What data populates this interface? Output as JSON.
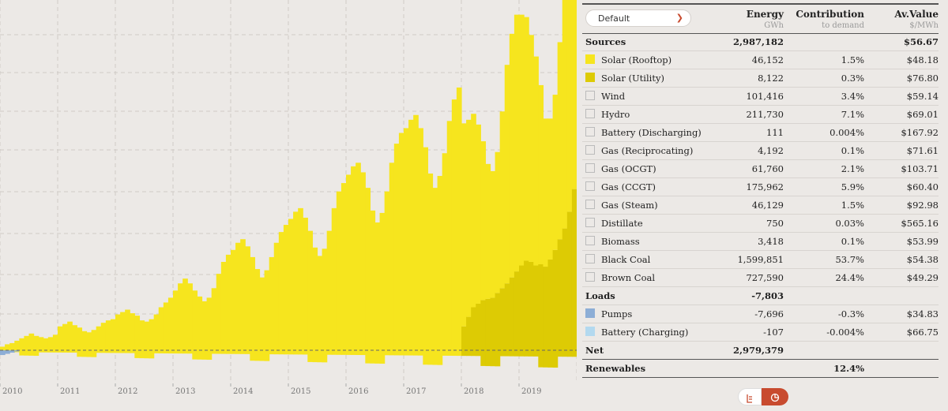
{
  "chart_data": {
    "type": "area",
    "x_labels": [
      "2010",
      "2011",
      "2012",
      "2013",
      "2014",
      "2015",
      "2016",
      "2017",
      "2018",
      "2019"
    ],
    "series": [
      {
        "name": "Solar (Rooftop)",
        "color": "#f6e51e",
        "values": [
          0.3,
          0.5,
          0.6,
          0.8,
          1.0,
          1.2,
          1.4,
          1.2,
          1.1,
          1.0,
          1.1,
          1.3,
          2.0,
          2.2,
          2.4,
          2.1,
          1.9,
          1.6,
          1.5,
          1.7,
          2.0,
          2.3,
          2.5,
          2.6,
          3.0,
          3.2,
          3.4,
          3.1,
          2.9,
          2.5,
          2.4,
          2.6,
          3.0,
          3.6,
          4.0,
          4.4,
          5.0,
          5.6,
          6.0,
          5.6,
          5.0,
          4.5,
          4.1,
          4.4,
          5.2,
          6.4,
          7.4,
          8.0,
          8.4,
          9.0,
          9.3,
          8.7,
          7.8,
          6.8,
          6.1,
          6.7,
          7.8,
          9.0,
          9.9,
          10.5,
          11.0,
          11.6,
          11.9,
          11.1,
          10.0,
          8.6,
          7.9,
          8.5,
          10.0,
          11.9,
          13.3,
          14.0,
          14.7,
          15.4,
          15.7,
          14.9,
          13.6,
          11.7,
          10.7,
          11.5,
          13.3,
          15.7,
          17.3,
          18.2,
          18.6,
          19.3,
          19.7,
          18.6,
          17.0,
          14.8,
          13.6,
          14.6,
          16.5,
          19.2,
          21.0,
          22.0,
          17.0,
          16.5,
          16.2,
          15.0,
          13.3,
          11.3,
          10.6,
          11.8,
          14.8,
          18.3,
          20.4,
          21.5,
          21.0,
          20.4,
          19.0,
          17.5,
          15.0,
          12.4,
          11.8,
          13.0,
          16.5,
          21.0,
          23.5,
          26.0
        ]
      },
      {
        "name": "Solar (Utility)",
        "color": "#ddcb04",
        "values": [
          0,
          0,
          0,
          0,
          0,
          0,
          0,
          0,
          0,
          0,
          0,
          0,
          0,
          0,
          0,
          0,
          0,
          0,
          0,
          0,
          0,
          0,
          0,
          0,
          0,
          0,
          0,
          0,
          0,
          0,
          0,
          0,
          0,
          0,
          0,
          0,
          0,
          0,
          0,
          0,
          0,
          0,
          0,
          0,
          0,
          0,
          0,
          0,
          0,
          0,
          0,
          0,
          0,
          0,
          0,
          0,
          0,
          0,
          0,
          0,
          0,
          0,
          0,
          0,
          0,
          0,
          0,
          0,
          0,
          0,
          0,
          0,
          0,
          0,
          0,
          0,
          0,
          0,
          0,
          0,
          0,
          0,
          0,
          0,
          0,
          0,
          0,
          0,
          0,
          0,
          0,
          0,
          0,
          0,
          0,
          0,
          2.0,
          2.8,
          3.6,
          3.9,
          4.2,
          4.3,
          4.4,
          4.8,
          5.2,
          5.6,
          6.1,
          6.6,
          7.1,
          7.5,
          7.4,
          7.1,
          7.2,
          7.0,
          7.6,
          8.4,
          9.3,
          10.2,
          11.6,
          13.5
        ]
      },
      {
        "name": "Pumps",
        "color": "#8daed6",
        "values": [
          -0.4,
          -0.3,
          -0.2,
          -0.1,
          0,
          0,
          0,
          0,
          0,
          0,
          0,
          0,
          0,
          0,
          0,
          0,
          0,
          0,
          0,
          0,
          0,
          0,
          0,
          0,
          0,
          0,
          0,
          0,
          0,
          0,
          0,
          0,
          0,
          0,
          0,
          0,
          0,
          0,
          0,
          0,
          0,
          0,
          0,
          0,
          0,
          0,
          0,
          0,
          0,
          0,
          0,
          0,
          0,
          0,
          0,
          0,
          0,
          0,
          0,
          0,
          0,
          0,
          0,
          0,
          0,
          0,
          0,
          0,
          0,
          0,
          0,
          0,
          0,
          0,
          0,
          0,
          0,
          0,
          0,
          0,
          0,
          0,
          0,
          0,
          0,
          0,
          0,
          0,
          0,
          0,
          0,
          0,
          0,
          0,
          0,
          0,
          0,
          0,
          0,
          0,
          0,
          0,
          0,
          0,
          0,
          0,
          0,
          0,
          0,
          0,
          0,
          0,
          0,
          0,
          0,
          0,
          0,
          0,
          0,
          0
        ]
      }
    ],
    "ylim": [
      -2,
      29
    ],
    "grid": true
  },
  "dropdown": {
    "selected": "Default"
  },
  "table": {
    "headers": {
      "energy": "Energy",
      "energy_unit": "GWh",
      "contribution": "Contribution",
      "contribution_unit": "to demand",
      "value": "Av.Value",
      "value_unit": "$/MWh"
    },
    "sources_group": {
      "label": "Sources",
      "energy": "2,987,182",
      "value": "$56.67"
    },
    "sources": [
      {
        "label": "Solar (Rooftop)",
        "energy": "46,152",
        "contribution": "1.5%",
        "value": "$48.18",
        "color": "#f6e51e",
        "on": true
      },
      {
        "label": "Solar (Utility)",
        "energy": "8,122",
        "contribution": "0.3%",
        "value": "$76.80",
        "color": "#ddcb04",
        "on": true
      },
      {
        "label": "Wind",
        "energy": "101,416",
        "contribution": "3.4%",
        "value": "$59.14",
        "on": false
      },
      {
        "label": "Hydro",
        "energy": "211,730",
        "contribution": "7.1%",
        "value": "$69.01",
        "on": false
      },
      {
        "label": "Battery (Discharging)",
        "energy": "111",
        "contribution": "0.004%",
        "value": "$167.92",
        "on": false
      },
      {
        "label": "Gas (Reciprocating)",
        "energy": "4,192",
        "contribution": "0.1%",
        "value": "$71.61",
        "on": false
      },
      {
        "label": "Gas (OCGT)",
        "energy": "61,760",
        "contribution": "2.1%",
        "value": "$103.71",
        "on": false
      },
      {
        "label": "Gas (CCGT)",
        "energy": "175,962",
        "contribution": "5.9%",
        "value": "$60.40",
        "on": false
      },
      {
        "label": "Gas (Steam)",
        "energy": "46,129",
        "contribution": "1.5%",
        "value": "$92.98",
        "on": false
      },
      {
        "label": "Distillate",
        "energy": "750",
        "contribution": "0.03%",
        "value": "$565.16",
        "on": false
      },
      {
        "label": "Biomass",
        "energy": "3,418",
        "contribution": "0.1%",
        "value": "$53.99",
        "on": false
      },
      {
        "label": "Black Coal",
        "energy": "1,599,851",
        "contribution": "53.7%",
        "value": "$54.38",
        "on": false
      },
      {
        "label": "Brown Coal",
        "energy": "727,590",
        "contribution": "24.4%",
        "value": "$49.29",
        "on": false
      }
    ],
    "loads_group": {
      "label": "Loads",
      "energy": "-7,803"
    },
    "loads": [
      {
        "label": "Pumps",
        "energy": "-7,696",
        "contribution": "-0.3%",
        "value": "$34.83",
        "color": "#8daed6",
        "on": true
      },
      {
        "label": "Battery (Charging)",
        "energy": "-107",
        "contribution": "-0.004%",
        "value": "$66.75",
        "color": "#b3d9ef",
        "on": true
      }
    ],
    "net": {
      "label": "Net",
      "energy": "2,979,379"
    },
    "renewables": {
      "label": "Renewables",
      "contribution": "12.4%"
    }
  },
  "toolbar": {
    "left_icon": "list-icon",
    "right_icon": "pie-chart-icon",
    "accent": "#c84b2f"
  }
}
